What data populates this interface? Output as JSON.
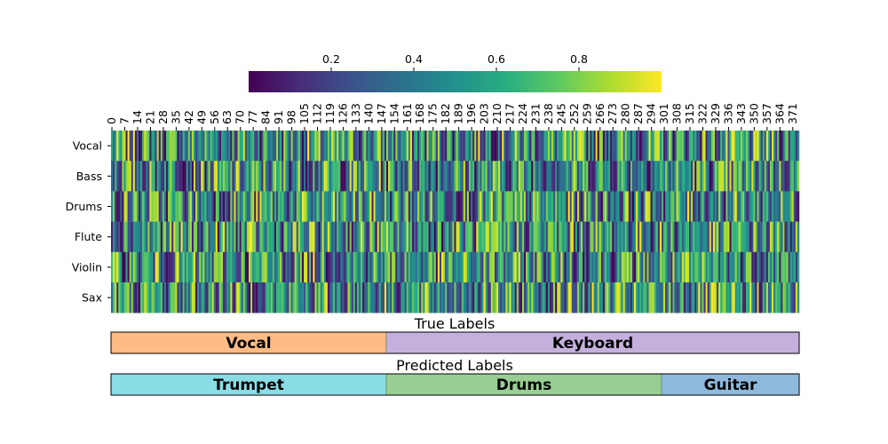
{
  "chart_data": {
    "type": "heatmap",
    "colormap": "viridis",
    "value_range": [
      0,
      1
    ],
    "colorbar": {
      "orientation": "horizontal",
      "ticks": [
        "0.2",
        "0.4",
        "0.6",
        "0.8"
      ],
      "tick_values": [
        0.2,
        0.4,
        0.6,
        0.8
      ]
    },
    "rows": [
      "Vocal",
      "Bass",
      "Drums",
      "Flute",
      "Violin",
      "Sax"
    ],
    "column_count": 375,
    "x_ticks": [
      "0",
      "7",
      "14",
      "21",
      "28",
      "35",
      "42",
      "49",
      "56",
      "63",
      "70",
      "77",
      "84",
      "91",
      "98",
      "105",
      "112",
      "119",
      "126",
      "133",
      "140",
      "147",
      "154",
      "161",
      "168",
      "175",
      "182",
      "189",
      "196",
      "203",
      "210",
      "217",
      "224",
      "231",
      "238",
      "245",
      "252",
      "259",
      "266",
      "273",
      "280",
      "287",
      "294",
      "301",
      "308",
      "315",
      "322",
      "329",
      "336",
      "343",
      "350",
      "357",
      "364",
      "371"
    ],
    "x_tick_values": [
      0,
      7,
      14,
      21,
      28,
      35,
      42,
      49,
      56,
      63,
      70,
      77,
      84,
      91,
      98,
      105,
      112,
      119,
      126,
      133,
      140,
      147,
      154,
      161,
      168,
      175,
      182,
      189,
      196,
      203,
      210,
      217,
      224,
      231,
      238,
      245,
      252,
      259,
      266,
      273,
      280,
      287,
      294,
      301,
      308,
      315,
      322,
      329,
      336,
      343,
      350,
      357,
      364,
      371
    ],
    "value_seed": 7,
    "true_labels": {
      "title": "True Labels",
      "segments": [
        {
          "label": "Vocal",
          "start": 0,
          "end": 150,
          "color": "#ffbb85"
        },
        {
          "label": "Keyboard",
          "start": 150,
          "end": 375,
          "color": "#c5b0dd"
        }
      ]
    },
    "predicted_labels": {
      "title": "Predicted Labels",
      "segments": [
        {
          "label": "Trumpet",
          "start": 0,
          "end": 150,
          "color": "#8adde5"
        },
        {
          "label": "Drums",
          "start": 150,
          "end": 300,
          "color": "#98cd93"
        },
        {
          "label": "Guitar",
          "start": 300,
          "end": 375,
          "color": "#8eb9dc"
        }
      ]
    }
  }
}
